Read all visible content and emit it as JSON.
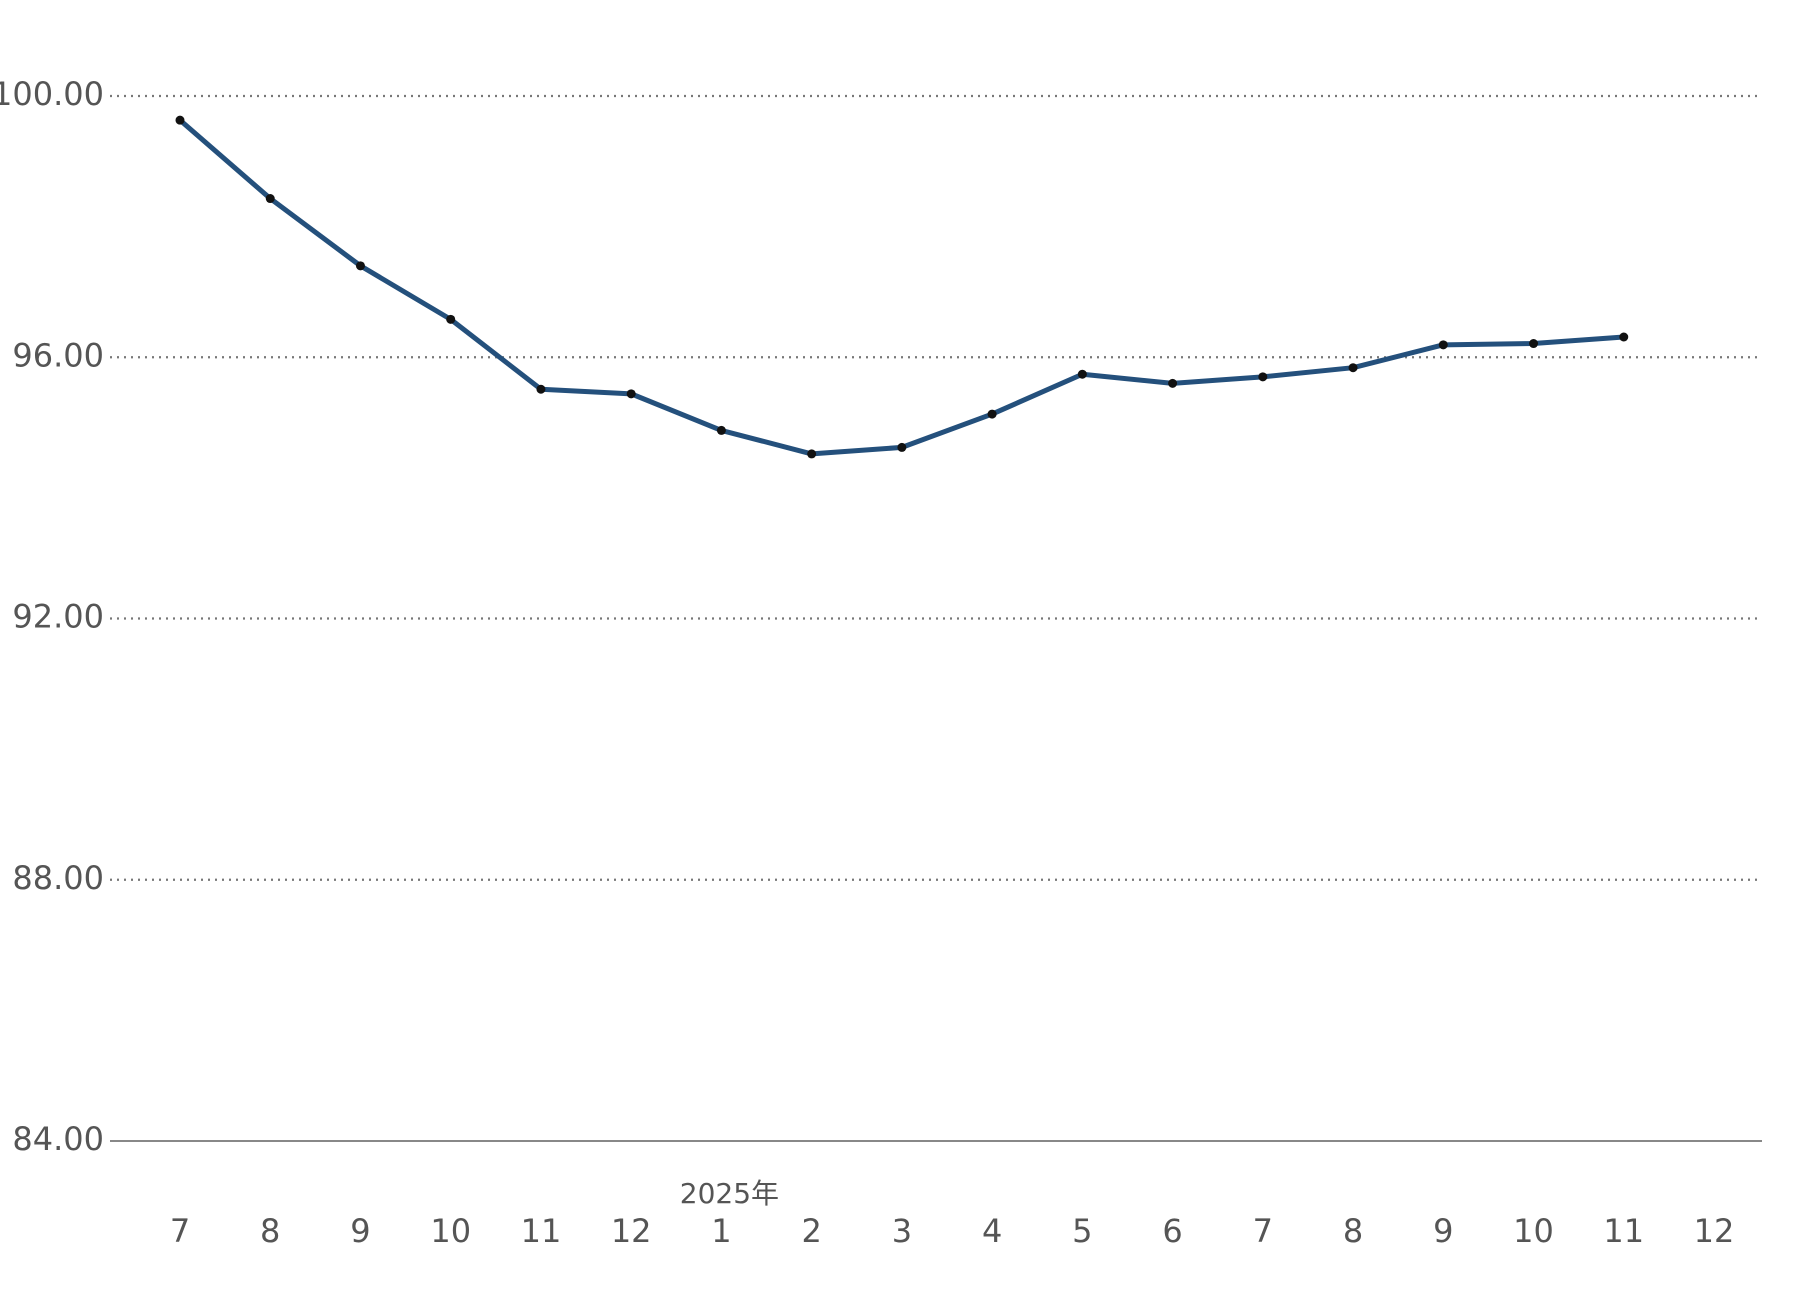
{
  "chart_data": {
    "type": "line",
    "categories": [
      "7",
      "8",
      "9",
      "10",
      "11",
      "12",
      "1",
      "2",
      "3",
      "4",
      "5",
      "6",
      "7",
      "8",
      "9",
      "10",
      "11",
      "12"
    ],
    "annotations": [
      {
        "text": "2025年",
        "category_index": 6
      }
    ],
    "series": [
      {
        "color": "#24507c",
        "marker_color": "#111111",
        "values": [
          99.63,
          98.43,
          97.4,
          96.58,
          95.51,
          95.44,
          94.88,
          94.52,
          94.62,
          95.13,
          95.74,
          95.6,
          95.7,
          95.84,
          96.19,
          96.21,
          96.31,
          null
        ]
      }
    ],
    "ylim": [
      84,
      100
    ],
    "yticks": [
      {
        "value": 84,
        "label": "84.00"
      },
      {
        "value": 88,
        "label": "88.00"
      },
      {
        "value": 92,
        "label": "92.00"
      },
      {
        "value": 96,
        "label": "96.00"
      },
      {
        "value": 100,
        "label": "100.00"
      }
    ],
    "grid": true
  }
}
